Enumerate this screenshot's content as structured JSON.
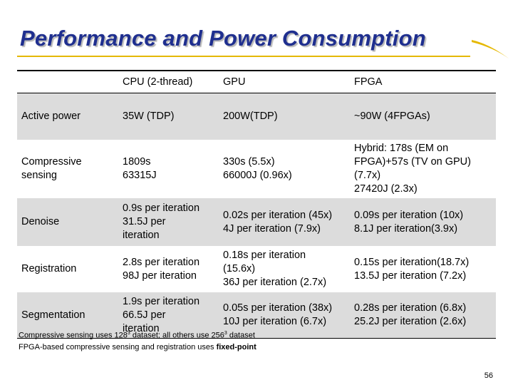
{
  "slide": {
    "title": "Performance and Power Consumption",
    "page_number": "56",
    "accent_color": "#e5b800",
    "title_color": "#1f2f8f"
  },
  "table": {
    "headers": [
      "",
      "CPU (2-thread)",
      "GPU",
      "FPGA"
    ],
    "rows": [
      {
        "label": "Active power",
        "cpu": "35W (TDP)",
        "gpu": "200W(TDP)",
        "fpga": "~90W (4FPGAs)"
      },
      {
        "label": "Compressive\nsensing",
        "cpu": "1809s\n63315J",
        "gpu": "330s (5.5x)\n66000J (0.96x)",
        "fpga": "Hybrid: 178s (EM on\nFPGA)+57s (TV on GPU)\n(7.7x)\n27420J (2.3x)"
      },
      {
        "label": "Denoise",
        "cpu": "0.9s per iteration\n31.5J per\niteration",
        "gpu": "0.02s per iteration (45x)\n4J per iteration (7.9x)",
        "fpga": "0.09s per iteration (10x)\n8.1J per iteration(3.9x)"
      },
      {
        "label": "Registration",
        "cpu": "2.8s per iteration\n98J per iteration",
        "gpu": "0.18s per iteration\n(15.6x)\n36J per iteration (2.7x)",
        "fpga": "0.15s per iteration(18.7x)\n13.5J per iteration (7.2x)"
      },
      {
        "label": "Segmentation",
        "cpu": "1.9s per iteration\n66.5J per\niteration",
        "gpu": "0.05s per iteration (38x)\n10J per iteration (6.7x)",
        "fpga": "0.28s per iteration (6.8x)\n25.2J per iteration (2.6x)"
      }
    ]
  },
  "notes": {
    "line1_a": "Compressive sensing uses 128",
    "line1_sup_a": "3",
    "line1_b": " dataset; all others use 256",
    "line1_sup_b": "3",
    "line1_c": " dataset",
    "line2_a": "FPGA-based compressive sensing and registration uses ",
    "line2_bold": "fixed-point"
  }
}
